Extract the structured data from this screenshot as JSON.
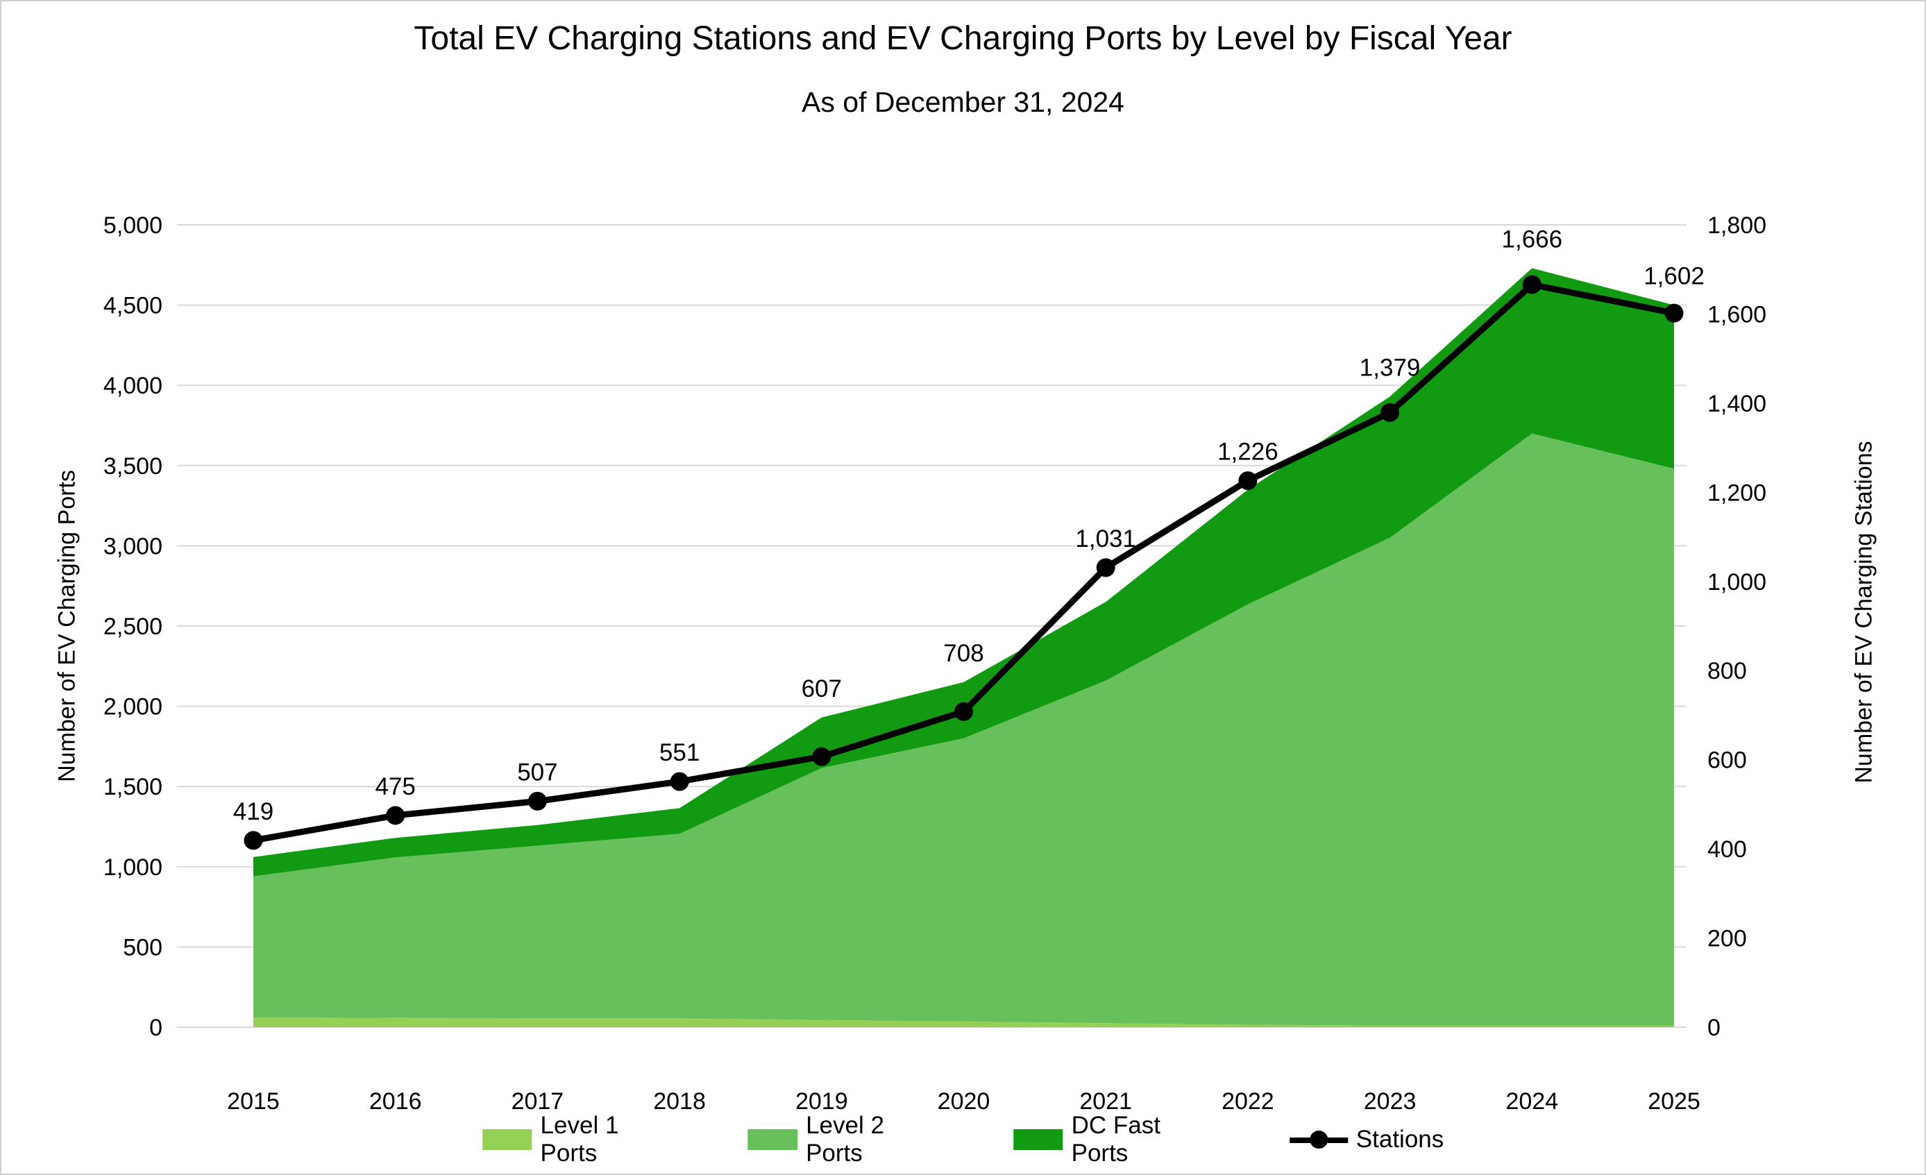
{
  "title": "Total EV Charging Stations and EV Charging Ports by Level by Fiscal Year",
  "subtitle": "As of December 31, 2024",
  "chart_data": {
    "type": "area+line",
    "x_label_type": "fiscal year",
    "categories": [
      2015,
      2016,
      2017,
      2018,
      2019,
      2020,
      2021,
      2022,
      2023,
      2024,
      2025
    ],
    "series": [
      {
        "name": "Level 1 Ports",
        "kind": "stacked-area",
        "axis": "left",
        "color": "#93D054",
        "values": [
          60,
          58,
          56,
          55,
          45,
          35,
          25,
          15,
          10,
          10,
          10
        ]
      },
      {
        "name": "Level 2 Ports",
        "kind": "stacked-area",
        "axis": "left",
        "color": "#67C05B",
        "values": [
          880,
          1000,
          1075,
          1150,
          1570,
          1765,
          2135,
          2620,
          3040,
          3690,
          3470
        ]
      },
      {
        "name": "DC Fast Ports",
        "kind": "stacked-area",
        "axis": "left",
        "color": "#129B12",
        "values": [
          120,
          122,
          129,
          160,
          315,
          350,
          490,
          715,
          880,
          1030,
          1020
        ]
      },
      {
        "name": "Stations",
        "kind": "line",
        "axis": "right",
        "color": "#000000",
        "values": [
          419,
          475,
          507,
          551,
          607,
          708,
          1031,
          1226,
          1379,
          1666,
          1602
        ]
      }
    ],
    "station_data_labels": [
      "419",
      "475",
      "507",
      "551",
      "607",
      "708",
      "1,031",
      "1,226",
      "1,379",
      "1,666",
      "1,602"
    ],
    "left_axis": {
      "title": "Number of EV Charging Ports",
      "min": 0,
      "max": 5000,
      "step": 500,
      "ticks": [
        "0",
        "500",
        "1,000",
        "1,500",
        "2,000",
        "2,500",
        "3,000",
        "3,500",
        "4,000",
        "4,500",
        "5,000"
      ]
    },
    "right_axis": {
      "title": "Number of EV Charging Stations",
      "min": 0,
      "max": 1800,
      "step": 200,
      "ticks": [
        "0",
        "200",
        "400",
        "600",
        "800",
        "1,000",
        "1,200",
        "1,400",
        "1,600",
        "1,800"
      ]
    },
    "grid": {
      "horizontal": true,
      "vertical": false,
      "color": "#D9D9D9"
    },
    "legend_position": "bottom",
    "background": "#FFFFFF"
  }
}
